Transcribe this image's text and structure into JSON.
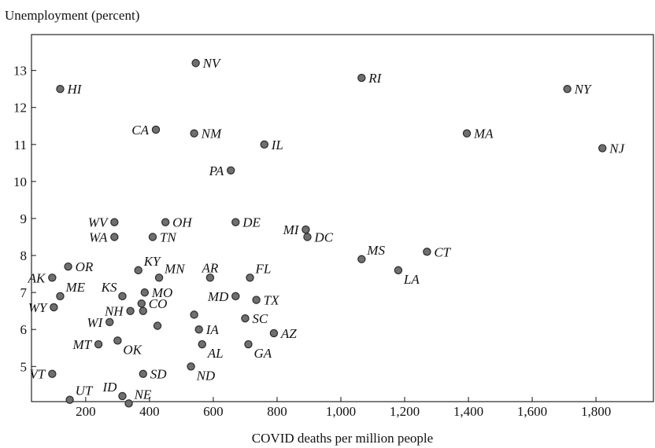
{
  "chart_data": {
    "type": "scatter",
    "ylabel": "Unemployment (percent)",
    "xlabel": "COVID deaths per million people",
    "xlim": [
      30,
      1980
    ],
    "ylim": [
      4.05,
      13.97
    ],
    "x_ticks": [
      200,
      400,
      600,
      800,
      1000,
      1200,
      1400,
      1600,
      1800
    ],
    "x_tick_labels": [
      "200",
      "400",
      "600",
      "800",
      "1,000",
      "1,200",
      "1,400",
      "1,600",
      "1,800"
    ],
    "y_ticks": [
      5,
      6,
      7,
      8,
      9,
      10,
      11,
      12,
      13
    ],
    "y_tick_labels": [
      "5",
      "6",
      "7",
      "8",
      "9",
      "10",
      "11",
      "12",
      "13"
    ],
    "grid": false,
    "marker_color": "#6f6f6f",
    "points": [
      {
        "label": "NV",
        "x": 545,
        "y": 13.2,
        "pos": "right"
      },
      {
        "label": "RI",
        "x": 1065,
        "y": 12.8,
        "pos": "right"
      },
      {
        "label": "HI",
        "x": 120,
        "y": 12.5,
        "pos": "right"
      },
      {
        "label": "NY",
        "x": 1710,
        "y": 12.5,
        "pos": "right"
      },
      {
        "label": "CA",
        "x": 420,
        "y": 11.4,
        "pos": "left"
      },
      {
        "label": "NM",
        "x": 540,
        "y": 11.3,
        "pos": "right"
      },
      {
        "label": "MA",
        "x": 1395,
        "y": 11.3,
        "pos": "right"
      },
      {
        "label": "IL",
        "x": 760,
        "y": 11.0,
        "pos": "right"
      },
      {
        "label": "NJ",
        "x": 1820,
        "y": 10.9,
        "pos": "right"
      },
      {
        "label": "PA",
        "x": 655,
        "y": 10.3,
        "pos": "left"
      },
      {
        "label": "WV",
        "x": 290,
        "y": 8.9,
        "pos": "left"
      },
      {
        "label": "OH",
        "x": 450,
        "y": 8.9,
        "pos": "right"
      },
      {
        "label": "DE",
        "x": 670,
        "y": 8.9,
        "pos": "right"
      },
      {
        "label": "MI",
        "x": 890,
        "y": 8.7,
        "pos": "left"
      },
      {
        "label": "DC",
        "x": 895,
        "y": 8.5,
        "pos": "right"
      },
      {
        "label": "WA",
        "x": 290,
        "y": 8.5,
        "pos": "left"
      },
      {
        "label": "TN",
        "x": 410,
        "y": 8.5,
        "pos": "right"
      },
      {
        "label": "CT",
        "x": 1270,
        "y": 8.1,
        "pos": "right"
      },
      {
        "label": "MS",
        "x": 1065,
        "y": 7.9,
        "pos": "upright"
      },
      {
        "label": "OR",
        "x": 145,
        "y": 7.7,
        "pos": "right"
      },
      {
        "label": "KY",
        "x": 365,
        "y": 7.6,
        "pos": "upright"
      },
      {
        "label": "LA",
        "x": 1180,
        "y": 7.6,
        "pos": "downright"
      },
      {
        "label": "AK",
        "x": 95,
        "y": 7.4,
        "pos": "left"
      },
      {
        "label": "MN",
        "x": 430,
        "y": 7.4,
        "pos": "upright"
      },
      {
        "label": "AR",
        "x": 590,
        "y": 7.4,
        "pos": "up"
      },
      {
        "label": "FL",
        "x": 715,
        "y": 7.4,
        "pos": "upright"
      },
      {
        "label": "ME",
        "x": 120,
        "y": 6.9,
        "pos": "upright"
      },
      {
        "label": "KS",
        "x": 315,
        "y": 6.9,
        "pos": "upleft"
      },
      {
        "label": "MO",
        "x": 385,
        "y": 7.0,
        "pos": "right"
      },
      {
        "label": "MD",
        "x": 670,
        "y": 6.9,
        "pos": "left"
      },
      {
        "label": "TX",
        "x": 735,
        "y": 6.8,
        "pos": "right"
      },
      {
        "label": "WY",
        "x": 100,
        "y": 6.6,
        "pos": "left"
      },
      {
        "label": "CO",
        "x": 375,
        "y": 6.7,
        "pos": "right"
      },
      {
        "label": "NH",
        "x": 340,
        "y": 6.5,
        "pos": "left"
      },
      {
        "label": "unlabeled_1",
        "x": 380,
        "y": 6.5,
        "pos": "none"
      },
      {
        "label": "unlabeled_2",
        "x": 540,
        "y": 6.4,
        "pos": "none"
      },
      {
        "label": "SC",
        "x": 700,
        "y": 6.3,
        "pos": "right"
      },
      {
        "label": "WI",
        "x": 275,
        "y": 6.2,
        "pos": "left"
      },
      {
        "label": "unlabeled_3",
        "x": 425,
        "y": 6.1,
        "pos": "none"
      },
      {
        "label": "IA",
        "x": 555,
        "y": 6.0,
        "pos": "right"
      },
      {
        "label": "AZ",
        "x": 790,
        "y": 5.9,
        "pos": "right"
      },
      {
        "label": "OK",
        "x": 300,
        "y": 5.7,
        "pos": "downright"
      },
      {
        "label": "MT",
        "x": 240,
        "y": 5.6,
        "pos": "left"
      },
      {
        "label": "AL",
        "x": 565,
        "y": 5.6,
        "pos": "downright"
      },
      {
        "label": "GA",
        "x": 710,
        "y": 5.6,
        "pos": "downright"
      },
      {
        "label": "ND",
        "x": 530,
        "y": 5.0,
        "pos": "downright"
      },
      {
        "label": "VT",
        "x": 95,
        "y": 4.8,
        "pos": "left"
      },
      {
        "label": "SD",
        "x": 380,
        "y": 4.8,
        "pos": "right"
      },
      {
        "label": "UT",
        "x": 150,
        "y": 4.1,
        "pos": "upright"
      },
      {
        "label": "ID",
        "x": 315,
        "y": 4.2,
        "pos": "upleft"
      },
      {
        "label": "NE",
        "x": 335,
        "y": 4.0,
        "pos": "upright"
      }
    ]
  }
}
